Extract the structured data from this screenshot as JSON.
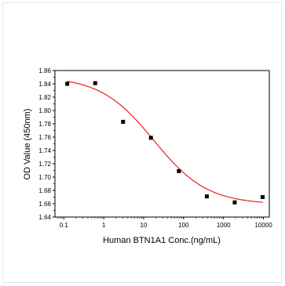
{
  "chart_data": {
    "type": "scatter",
    "title": "",
    "xlabel": "Human BTN1A1 Conc.(ng/mL)",
    "ylabel": "OD Value (450nm)",
    "x_scale": "log",
    "xlim": [
      0.06,
      14000
    ],
    "ylim": [
      1.64,
      1.86
    ],
    "x_ticks": [
      0.1,
      1,
      10,
      100,
      1000,
      10000
    ],
    "x_tick_labels": [
      "0.1",
      "1",
      "10",
      "100",
      "1000",
      "10000"
    ],
    "y_ticks": [
      1.64,
      1.66,
      1.68,
      1.7,
      1.72,
      1.74,
      1.76,
      1.78,
      1.8,
      1.82,
      1.84,
      1.86
    ],
    "y_tick_labels": [
      "1.64",
      "1.66",
      "1.68",
      "1.70",
      "1.72",
      "1.74",
      "1.76",
      "1.78",
      "1.80",
      "1.82",
      "1.84",
      "1.86"
    ],
    "grid": false,
    "legend": "none",
    "series": [
      {
        "kind": "points",
        "marker": "square",
        "color": "#000000",
        "x": [
          0.122,
          0.61,
          3.05,
          15.2,
          76.2,
          381,
          1905,
          9520
        ],
        "y": [
          1.84,
          1.841,
          1.783,
          1.759,
          1.709,
          1.671,
          1.662,
          1.67
        ]
      },
      {
        "kind": "fit",
        "color": "#e8211d",
        "model": "4PL",
        "top": 1.851,
        "bottom": 1.659,
        "ec50": 18,
        "hill": 0.65
      }
    ]
  }
}
